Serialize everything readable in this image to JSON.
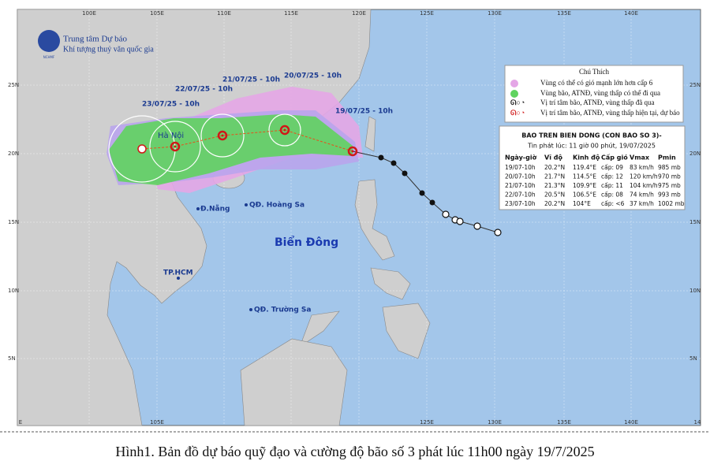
{
  "header": {
    "org": "Trung tâm Dự báo",
    "org_sub": "Khí tượng thuỷ văn quốc gia",
    "logo": "NCHMF"
  },
  "axes": {
    "top": [
      "100E",
      "105E",
      "110E",
      "115E",
      "120E",
      "125E",
      "130E",
      "135E",
      "140E"
    ],
    "bottom": [
      "E",
      "105E",
      "125E",
      "130E",
      "135E",
      "140E",
      "14"
    ],
    "left": [
      "25N",
      "20N",
      "15N",
      "10N",
      "5N"
    ],
    "right": [
      "25N",
      "20N",
      "15N",
      "10N",
      "5N"
    ]
  },
  "forecast_labels": [
    "19/07/25 - 10h",
    "20/07/25 - 10h",
    "21/07/25 - 10h",
    "22/07/25 - 10h",
    "23/07/25 - 10h"
  ],
  "places": [
    "Hà Nội",
    "Đ.Nẵng",
    "QĐ. Hoàng Sa",
    "Biển Đông",
    "TP.HCM",
    "QĐ. Trường Sa"
  ],
  "legend": {
    "title": "Chú Thích",
    "items": [
      "Vùng có thể có gió mạnh lớn hơn cấp 6",
      "Vùng bão, ATNĐ, vùng thấp có thể đi qua",
      "Vị trí tâm bão, ATNĐ, vùng thấp đã qua",
      "Vị trí tâm bão, ATNĐ, vùng thấp hiện tại, dự báo"
    ]
  },
  "info": {
    "title": "BAO TREN BIEN DONG (CON BAO SO 3)-",
    "subtitle": "Tin phát lúc: 11 giờ 00 phút, 19/07/2025",
    "columns": [
      "Ngày-giờ",
      "Vĩ độ",
      "Kinh độ",
      "Cấp gió",
      "Vmax",
      "Pmin"
    ],
    "rows": [
      [
        "19/07-10h",
        "20.2°N",
        "119.4°E",
        "cấp: 09",
        "83 km/h",
        "985 mb"
      ],
      [
        "20/07-10h",
        "21.7°N",
        "114.5°E",
        "cấp: 12",
        "120 km/h",
        "970 mb"
      ],
      [
        "21/07-10h",
        "21.3°N",
        "109.9°E",
        "cấp: 11",
        "104 km/h",
        "975 mb"
      ],
      [
        "22/07-10h",
        "20.5°N",
        "106.5°E",
        "cấp: 08",
        "74 km/h",
        "993 mb"
      ],
      [
        "23/07-10h",
        "20.2°N",
        "104°E",
        "cấp: <6",
        "37 km/h",
        "1002 mb"
      ]
    ]
  },
  "caption": "Hình1. Bản đồ dự báo quỹ đạo và cường độ bão số 3 phát lúc 11h00 ngày 19/7/2025"
}
